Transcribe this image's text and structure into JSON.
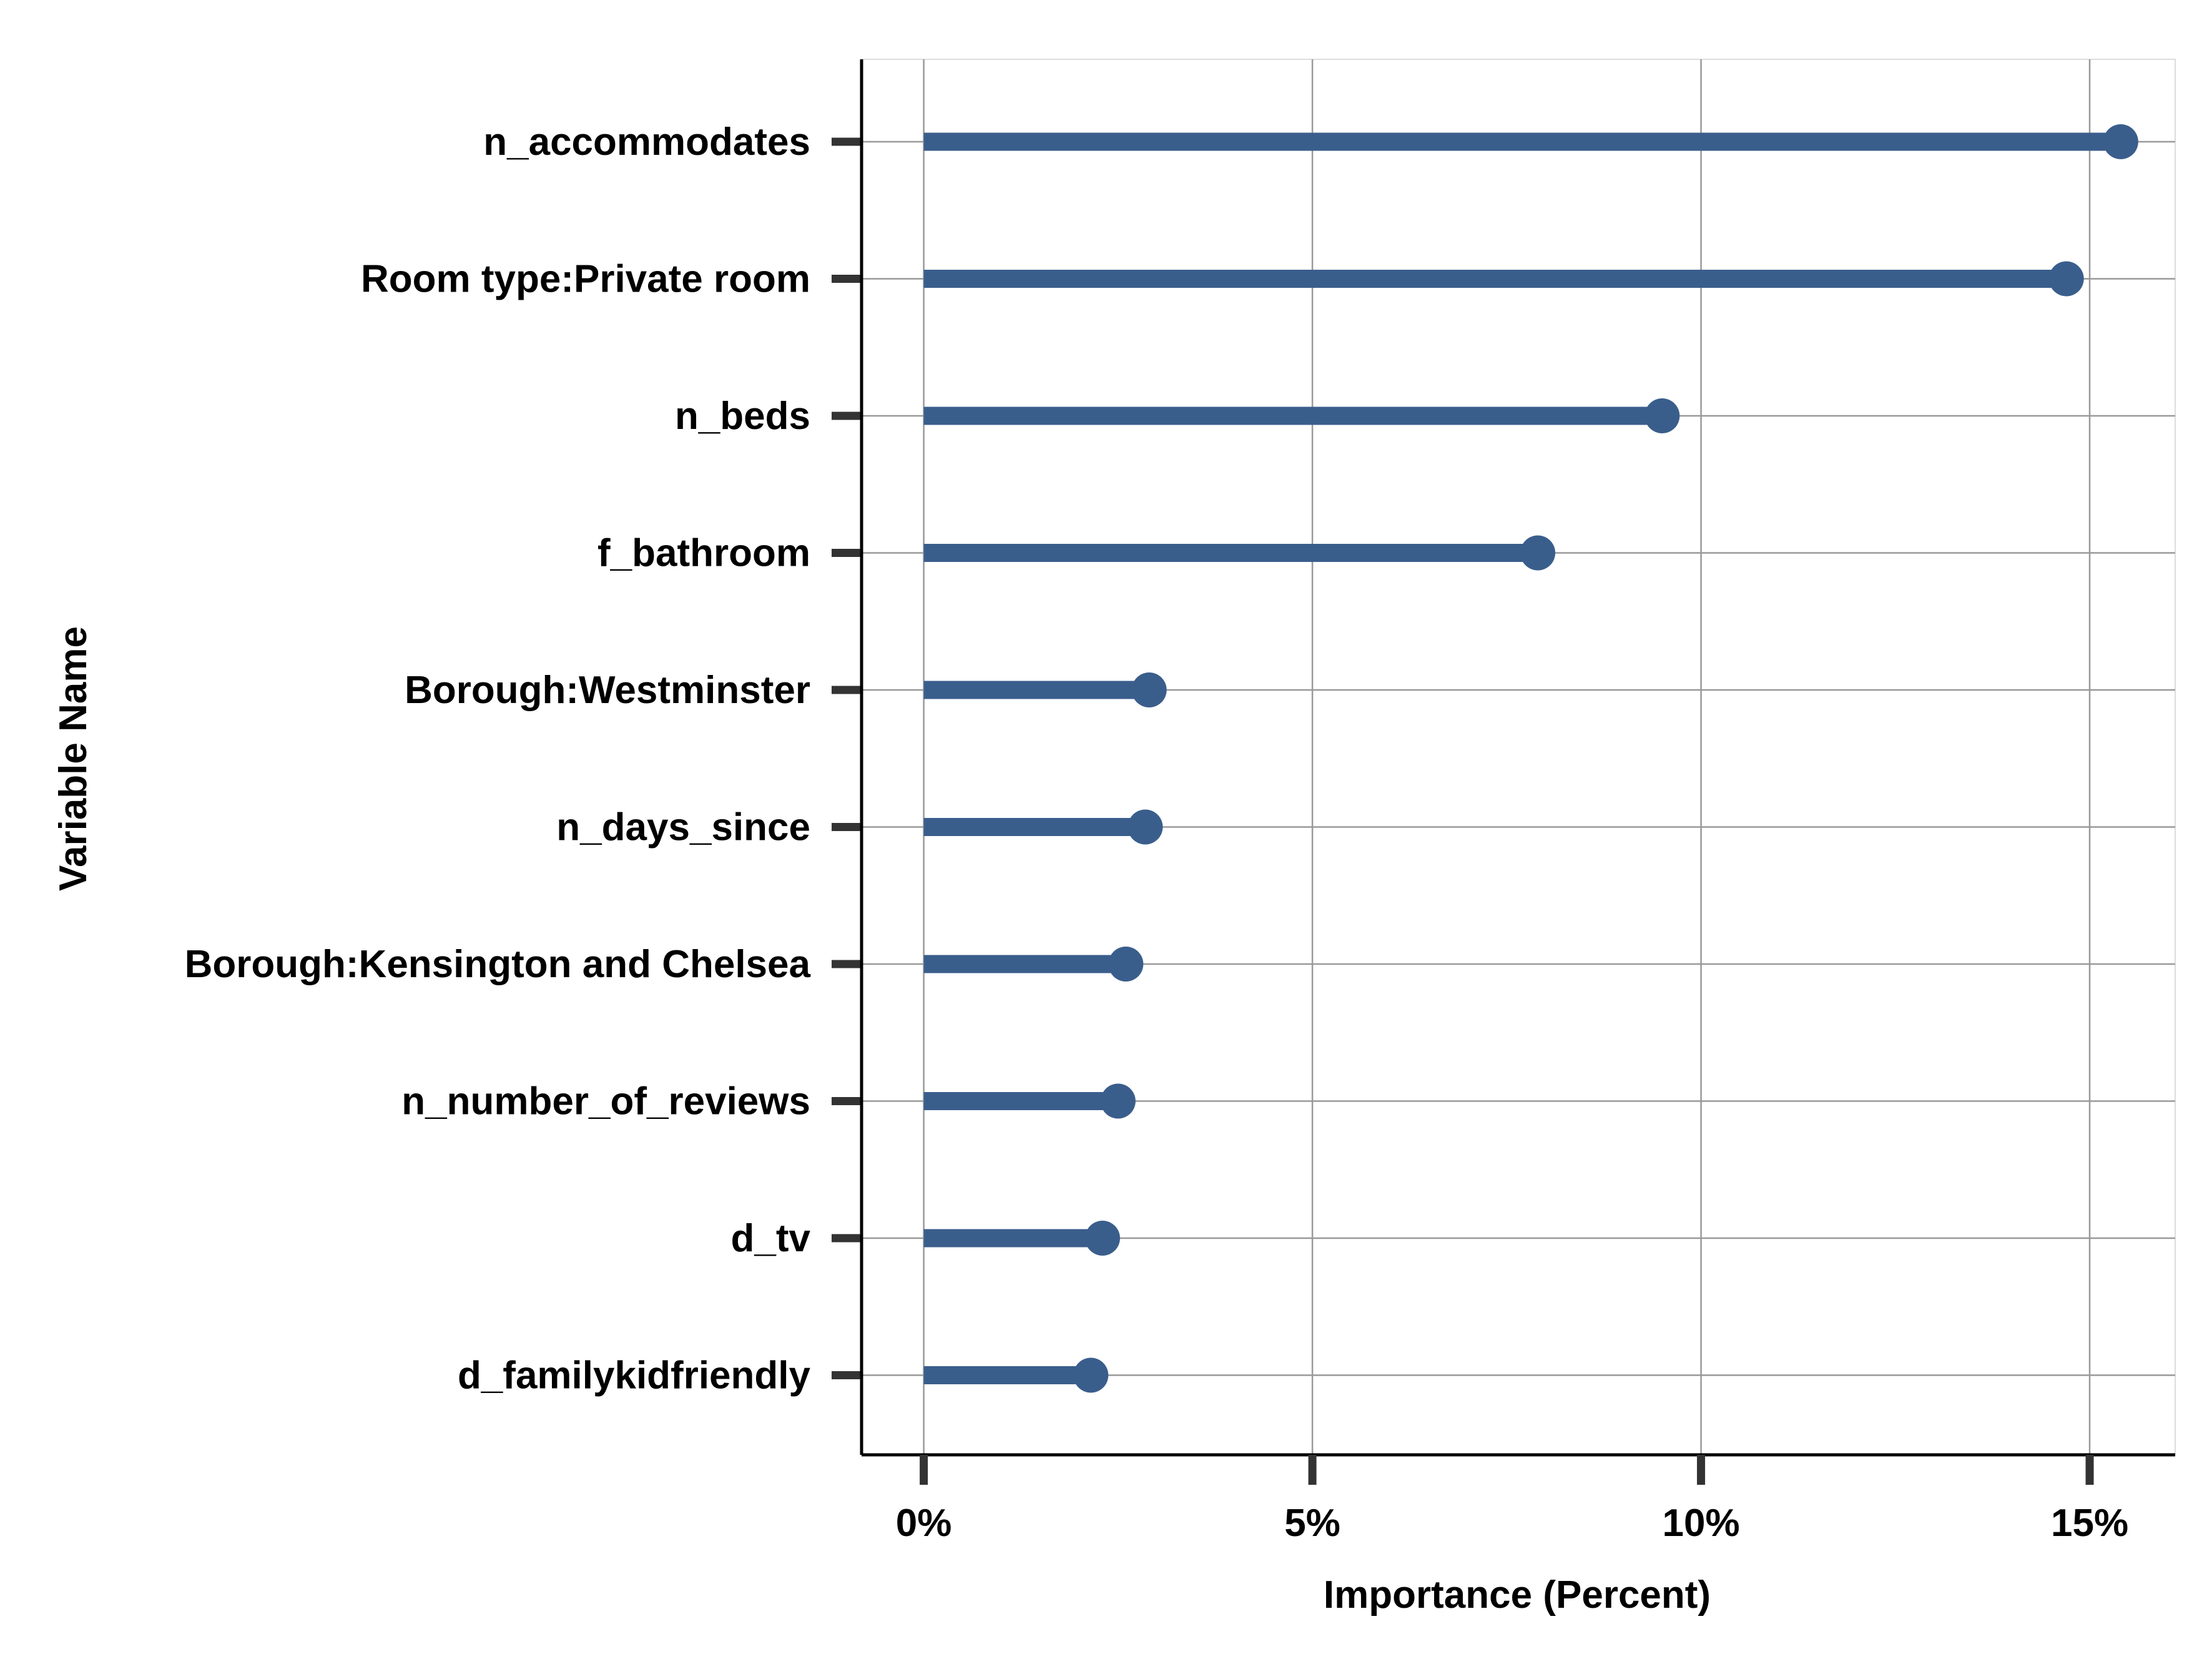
{
  "colors": {
    "series": "#3A5E8C",
    "grid": "#999999",
    "axis": "#000000",
    "tick": "#333333",
    "panel_border": "#dddddd"
  },
  "chart_data": {
    "type": "lollipop",
    "orientation": "horizontal",
    "title": "",
    "xlabel": "Importance (Percent)",
    "ylabel": "Variable Name",
    "xlim": [
      -0.8,
      16.1
    ],
    "x_ticks": [
      0,
      5,
      10,
      15
    ],
    "x_tick_labels": [
      "0%",
      "5%",
      "10%",
      "15%"
    ],
    "grid": true,
    "legend": "none",
    "categories": [
      "n_accommodates",
      "Room type:Private room",
      "n_beds",
      "f_bathroom",
      "Borough:Westminster",
      "n_days_since",
      "Borough:Kensington and Chelsea",
      "n_number_of_reviews",
      "d_tv",
      "d_familykidfriendly"
    ],
    "values": [
      15.4,
      14.7,
      9.5,
      7.9,
      2.9,
      2.85,
      2.6,
      2.5,
      2.3,
      2.15
    ]
  }
}
